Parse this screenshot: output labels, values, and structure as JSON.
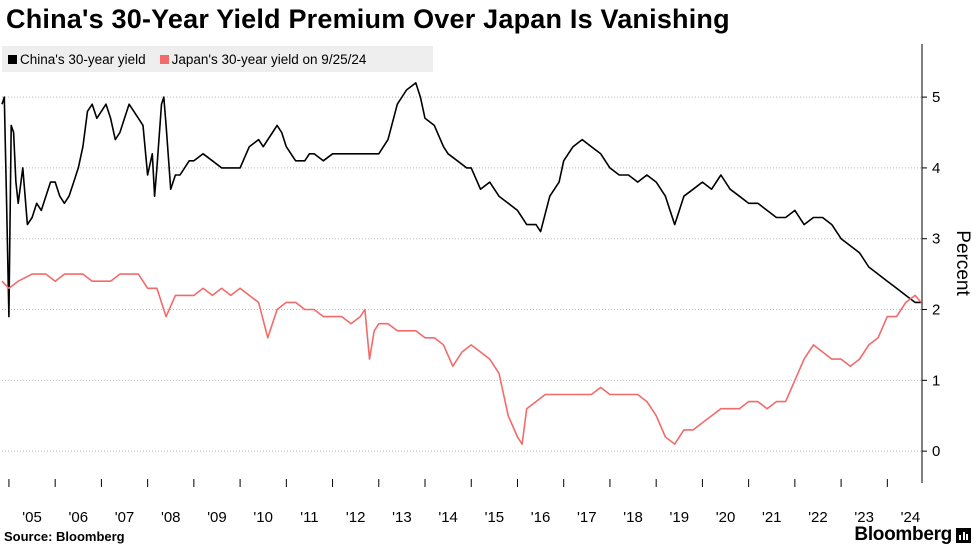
{
  "title": "China's 30-Year Yield Premium Over Japan Is Vanishing",
  "source": "Source: Bloomberg",
  "brand": "Bloomberg",
  "colors": {
    "china": "#000000",
    "japan": "#f26b6b",
    "grid": "#bbbbbb",
    "legend_bg": "#eeeeee"
  },
  "chart_data": {
    "type": "line",
    "title": "China's 30-Year Yield Premium Over Japan Is Vanishing",
    "xlabel": "",
    "ylabel": "Percent",
    "y_axis_position": "right",
    "ylim": [
      -0.45,
      5.75
    ],
    "xlim": [
      2004.85,
      2024.75
    ],
    "x_ticks": [
      {
        "value": 2005,
        "label": "'05"
      },
      {
        "value": 2006,
        "label": "'06"
      },
      {
        "value": 2007,
        "label": "'07"
      },
      {
        "value": 2008,
        "label": "'08"
      },
      {
        "value": 2009,
        "label": "'09"
      },
      {
        "value": 2010,
        "label": "'10"
      },
      {
        "value": 2011,
        "label": "'11"
      },
      {
        "value": 2012,
        "label": "'12"
      },
      {
        "value": 2013,
        "label": "'13"
      },
      {
        "value": 2014,
        "label": "'14"
      },
      {
        "value": 2015,
        "label": "'15"
      },
      {
        "value": 2016,
        "label": "'16"
      },
      {
        "value": 2017,
        "label": "'17"
      },
      {
        "value": 2018,
        "label": "'18"
      },
      {
        "value": 2019,
        "label": "'19"
      },
      {
        "value": 2020,
        "label": "'20"
      },
      {
        "value": 2021,
        "label": "'21"
      },
      {
        "value": 2022,
        "label": "'22"
      },
      {
        "value": 2023,
        "label": "'23"
      },
      {
        "value": 2024,
        "label": "'24"
      }
    ],
    "y_ticks": [
      0,
      1,
      2,
      3,
      4,
      5
    ],
    "grid": "horizontal dotted",
    "legend_position": "top-left",
    "series": [
      {
        "name": "China's 30-year yield",
        "color": "#000000",
        "x": [
          2004.85,
          2004.9,
          2004.95,
          2005.0,
          2005.05,
          2005.1,
          2005.15,
          2005.2,
          2005.3,
          2005.4,
          2005.5,
          2005.6,
          2005.7,
          2005.8,
          2005.9,
          2006.0,
          2006.1,
          2006.2,
          2006.3,
          2006.4,
          2006.5,
          2006.6,
          2006.7,
          2006.8,
          2006.9,
          2007.0,
          2007.1,
          2007.2,
          2007.3,
          2007.4,
          2007.5,
          2007.6,
          2007.7,
          2007.8,
          2007.9,
          2008.0,
          2008.1,
          2008.15,
          2008.2,
          2008.3,
          2008.35,
          2008.4,
          2008.5,
          2008.6,
          2008.7,
          2008.8,
          2008.9,
          2009.0,
          2009.2,
          2009.4,
          2009.6,
          2009.8,
          2010.0,
          2010.2,
          2010.4,
          2010.5,
          2010.7,
          2010.8,
          2010.9,
          2011.0,
          2011.2,
          2011.4,
          2011.5,
          2011.6,
          2011.8,
          2012.0,
          2012.2,
          2012.4,
          2012.6,
          2012.8,
          2013.0,
          2013.2,
          2013.4,
          2013.6,
          2013.8,
          2013.9,
          2014.0,
          2014.2,
          2014.4,
          2014.5,
          2014.7,
          2014.9,
          2015.0,
          2015.2,
          2015.4,
          2015.6,
          2015.8,
          2016.0,
          2016.2,
          2016.4,
          2016.5,
          2016.7,
          2016.9,
          2017.0,
          2017.2,
          2017.4,
          2017.6,
          2017.8,
          2018.0,
          2018.2,
          2018.4,
          2018.6,
          2018.8,
          2019.0,
          2019.2,
          2019.4,
          2019.6,
          2019.8,
          2020.0,
          2020.2,
          2020.4,
          2020.6,
          2020.8,
          2021.0,
          2021.2,
          2021.4,
          2021.6,
          2021.8,
          2022.0,
          2022.2,
          2022.4,
          2022.6,
          2022.8,
          2023.0,
          2023.2,
          2023.4,
          2023.6,
          2023.8,
          2024.0,
          2024.2,
          2024.4,
          2024.6,
          2024.73
        ],
        "y": [
          4.9,
          5.0,
          3.5,
          1.9,
          4.6,
          4.5,
          3.8,
          3.5,
          4.0,
          3.2,
          3.3,
          3.5,
          3.4,
          3.6,
          3.8,
          3.8,
          3.6,
          3.5,
          3.6,
          3.8,
          4.0,
          4.3,
          4.8,
          4.9,
          4.7,
          4.8,
          4.9,
          4.7,
          4.4,
          4.5,
          4.7,
          4.9,
          4.8,
          4.7,
          4.6,
          3.9,
          4.2,
          3.6,
          4.0,
          4.9,
          5.0,
          4.6,
          3.7,
          3.9,
          3.9,
          4.0,
          4.1,
          4.1,
          4.2,
          4.1,
          4.0,
          4.0,
          4.0,
          4.3,
          4.4,
          4.3,
          4.5,
          4.6,
          4.5,
          4.3,
          4.1,
          4.1,
          4.2,
          4.2,
          4.1,
          4.2,
          4.2,
          4.2,
          4.2,
          4.2,
          4.2,
          4.4,
          4.9,
          5.1,
          5.2,
          5.0,
          4.7,
          4.6,
          4.3,
          4.2,
          4.1,
          4.0,
          4.0,
          3.7,
          3.8,
          3.6,
          3.5,
          3.4,
          3.2,
          3.2,
          3.1,
          3.6,
          3.8,
          4.1,
          4.3,
          4.4,
          4.3,
          4.2,
          4.0,
          3.9,
          3.9,
          3.8,
          3.9,
          3.8,
          3.6,
          3.2,
          3.6,
          3.7,
          3.8,
          3.7,
          3.9,
          3.7,
          3.6,
          3.5,
          3.5,
          3.4,
          3.3,
          3.3,
          3.4,
          3.2,
          3.3,
          3.3,
          3.2,
          3.0,
          2.9,
          2.8,
          2.6,
          2.5,
          2.4,
          2.3,
          2.2,
          2.1,
          2.1
        ]
      },
      {
        "name": "Japan's 30-year yield on 9/25/24",
        "color": "#f26b6b",
        "x": [
          2004.85,
          2005.0,
          2005.2,
          2005.5,
          2005.8,
          2006.0,
          2006.2,
          2006.4,
          2006.6,
          2006.8,
          2007.0,
          2007.2,
          2007.4,
          2007.6,
          2007.8,
          2008.0,
          2008.2,
          2008.4,
          2008.6,
          2008.8,
          2009.0,
          2009.2,
          2009.4,
          2009.6,
          2009.8,
          2010.0,
          2010.2,
          2010.4,
          2010.6,
          2010.8,
          2011.0,
          2011.2,
          2011.4,
          2011.6,
          2011.8,
          2012.0,
          2012.2,
          2012.4,
          2012.6,
          2012.7,
          2012.8,
          2012.9,
          2013.0,
          2013.2,
          2013.4,
          2013.6,
          2013.8,
          2014.0,
          2014.2,
          2014.4,
          2014.6,
          2014.8,
          2015.0,
          2015.2,
          2015.4,
          2015.6,
          2015.8,
          2016.0,
          2016.1,
          2016.2,
          2016.4,
          2016.6,
          2016.8,
          2017.0,
          2017.2,
          2017.4,
          2017.6,
          2017.8,
          2018.0,
          2018.2,
          2018.4,
          2018.6,
          2018.8,
          2019.0,
          2019.2,
          2019.4,
          2019.6,
          2019.8,
          2020.0,
          2020.2,
          2020.4,
          2020.6,
          2020.8,
          2021.0,
          2021.2,
          2021.4,
          2021.6,
          2021.8,
          2022.0,
          2022.2,
          2022.4,
          2022.6,
          2022.8,
          2023.0,
          2023.2,
          2023.4,
          2023.6,
          2023.8,
          2024.0,
          2024.2,
          2024.4,
          2024.6,
          2024.73
        ],
        "y": [
          2.4,
          2.3,
          2.4,
          2.5,
          2.5,
          2.4,
          2.5,
          2.5,
          2.5,
          2.4,
          2.4,
          2.4,
          2.5,
          2.5,
          2.5,
          2.3,
          2.3,
          1.9,
          2.2,
          2.2,
          2.2,
          2.3,
          2.2,
          2.3,
          2.2,
          2.3,
          2.2,
          2.1,
          1.6,
          2.0,
          2.1,
          2.1,
          2.0,
          2.0,
          1.9,
          1.9,
          1.9,
          1.8,
          1.9,
          2.0,
          1.3,
          1.7,
          1.8,
          1.8,
          1.7,
          1.7,
          1.7,
          1.6,
          1.6,
          1.5,
          1.2,
          1.4,
          1.5,
          1.4,
          1.3,
          1.1,
          0.5,
          0.2,
          0.1,
          0.6,
          0.7,
          0.8,
          0.8,
          0.8,
          0.8,
          0.8,
          0.8,
          0.9,
          0.8,
          0.8,
          0.8,
          0.8,
          0.7,
          0.5,
          0.2,
          0.1,
          0.3,
          0.3,
          0.4,
          0.5,
          0.6,
          0.6,
          0.6,
          0.7,
          0.7,
          0.6,
          0.7,
          0.7,
          1.0,
          1.3,
          1.5,
          1.4,
          1.3,
          1.3,
          1.2,
          1.3,
          1.5,
          1.6,
          1.9,
          1.9,
          2.1,
          2.2,
          2.1
        ]
      }
    ]
  }
}
